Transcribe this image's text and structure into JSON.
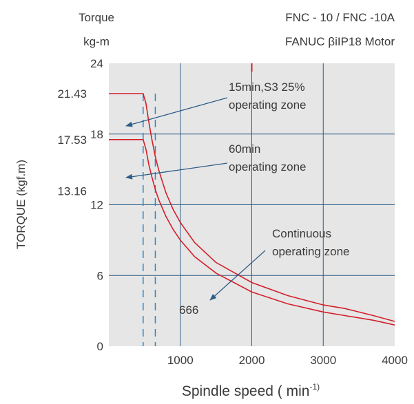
{
  "header": {
    "left_line1": "Torque",
    "left_line2": "kg-m",
    "right_line1": "FNC - 10 / FNC -10A",
    "right_line2": "FANUC βiIP18 Motor"
  },
  "chart_data": {
    "type": "line",
    "xlabel": "Spindle speed ( min",
    "xlabel_sup": "-1)",
    "ylabel": "TORQUE (kgf.m)",
    "xlim": [
      0,
      4000
    ],
    "ylim": [
      0,
      24
    ],
    "grid": true,
    "x_ticks": [
      {
        "value": 1000,
        "label": "1000"
      },
      {
        "value": 2000,
        "label": "2000"
      },
      {
        "value": 3000,
        "label": "3000"
      },
      {
        "value": 4000,
        "label": "4000"
      }
    ],
    "y_ticks": [
      {
        "value": 0,
        "label": "0"
      },
      {
        "value": 6,
        "label": "6"
      },
      {
        "value": 12,
        "label": "12"
      },
      {
        "value": 18,
        "label": "18"
      },
      {
        "value": 24,
        "label": "24"
      }
    ],
    "extra_y_labels": [
      {
        "value": 21.43,
        "label": "21.43"
      },
      {
        "value": 17.53,
        "label": "17.53"
      },
      {
        "value": 13.16,
        "label": "13.16"
      }
    ],
    "series": [
      {
        "name": "15min,S3 25% operating zone",
        "color": "#d21f2a",
        "x": [
          0,
          480,
          520,
          560,
          600,
          650,
          700,
          800,
          900,
          1000,
          1200,
          1500,
          2000,
          2500,
          3000,
          3300,
          3700,
          4000
        ],
        "y": [
          21.43,
          21.43,
          20.6,
          19.0,
          17.6,
          16.1,
          14.9,
          13.0,
          11.6,
          10.5,
          8.8,
          7.1,
          5.4,
          4.3,
          3.5,
          3.2,
          2.6,
          2.1
        ]
      },
      {
        "name": "60min operating zone",
        "color": "#d21f2a",
        "x": [
          0,
          480,
          520,
          560,
          600,
          650,
          700,
          800,
          900,
          1000,
          1200,
          1500,
          2000,
          2500,
          3000,
          3300,
          3700,
          4000
        ],
        "y": [
          17.53,
          17.53,
          16.7,
          15.4,
          14.4,
          13.3,
          12.4,
          11.0,
          9.9,
          9.0,
          7.6,
          6.2,
          4.6,
          3.6,
          2.9,
          2.6,
          2.2,
          1.8
        ]
      }
    ],
    "vlines": [
      {
        "x": 480,
        "color": "#2a86c9"
      },
      {
        "x": 650,
        "color": "#2a86c9"
      }
    ],
    "annotations": [
      {
        "line1": "15min,S3 25%",
        "line2": "operating zone"
      },
      {
        "line1": "60min",
        "line2": "operating zone"
      },
      {
        "line1": "Continuous",
        "line2": "operating zone"
      },
      {
        "line1": "666",
        "line2": ""
      }
    ],
    "colors": {
      "plot_bg": "#e6e6e6",
      "grid": "#2d5d87",
      "curve": "#d21f2a",
      "dashed": "#2a86c9",
      "arrow": "#2d5d87"
    }
  }
}
